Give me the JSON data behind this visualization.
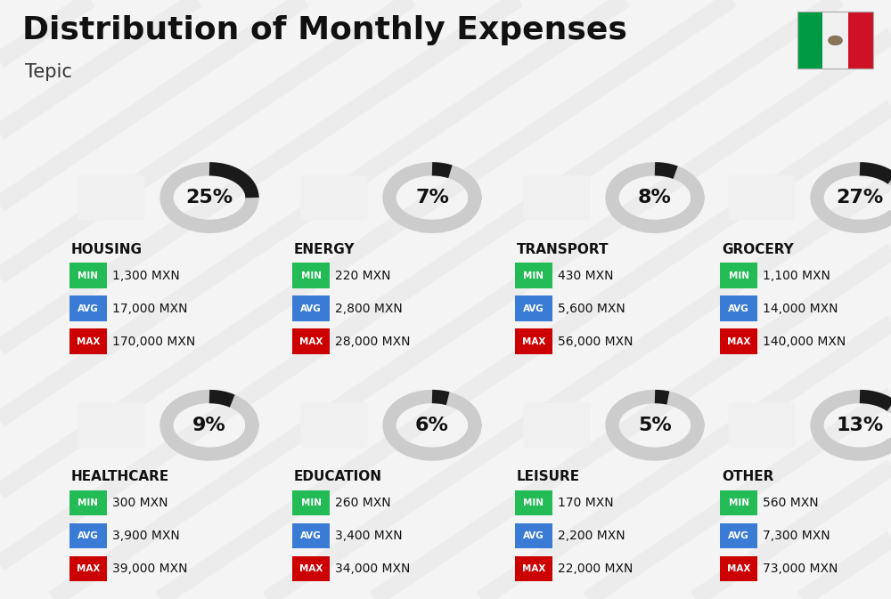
{
  "title": "Distribution of Monthly Expenses",
  "subtitle": "Tepic",
  "bg_color": "#f4f4f4",
  "categories": [
    {
      "name": "HOUSING",
      "percent": 25,
      "min_val": "1,300 MXN",
      "avg_val": "17,000 MXN",
      "max_val": "170,000 MXN",
      "row": 0,
      "col": 0
    },
    {
      "name": "ENERGY",
      "percent": 7,
      "min_val": "220 MXN",
      "avg_val": "2,800 MXN",
      "max_val": "28,000 MXN",
      "row": 0,
      "col": 1
    },
    {
      "name": "TRANSPORT",
      "percent": 8,
      "min_val": "430 MXN",
      "avg_val": "5,600 MXN",
      "max_val": "56,000 MXN",
      "row": 0,
      "col": 2
    },
    {
      "name": "GROCERY",
      "percent": 27,
      "min_val": "1,100 MXN",
      "avg_val": "14,000 MXN",
      "max_val": "140,000 MXN",
      "row": 0,
      "col": 3
    },
    {
      "name": "HEALTHCARE",
      "percent": 9,
      "min_val": "300 MXN",
      "avg_val": "3,900 MXN",
      "max_val": "39,000 MXN",
      "row": 1,
      "col": 0
    },
    {
      "name": "EDUCATION",
      "percent": 6,
      "min_val": "260 MXN",
      "avg_val": "3,400 MXN",
      "max_val": "34,000 MXN",
      "row": 1,
      "col": 1
    },
    {
      "name": "LEISURE",
      "percent": 5,
      "min_val": "170 MXN",
      "avg_val": "2,200 MXN",
      "max_val": "22,000 MXN",
      "row": 1,
      "col": 2
    },
    {
      "name": "OTHER",
      "percent": 13,
      "min_val": "560 MXN",
      "avg_val": "7,300 MXN",
      "max_val": "73,000 MXN",
      "row": 1,
      "col": 3
    }
  ],
  "min_color": "#22bb55",
  "avg_color": "#3a7bd5",
  "max_color": "#cc0000",
  "ring_filled": "#1a1a1a",
  "ring_empty": "#cccccc",
  "title_fontsize": 26,
  "subtitle_fontsize": 15,
  "category_fontsize": 11,
  "value_fontsize": 10,
  "percent_fontsize": 16,
  "flag_green": "#009a44",
  "flag_white": "#f0f0f0",
  "flag_red": "#ce1126",
  "stripe_color": "#e8e8e8",
  "col_starts": [
    0.08,
    0.33,
    0.58,
    0.81
  ],
  "row_tops": [
    0.74,
    0.36
  ]
}
